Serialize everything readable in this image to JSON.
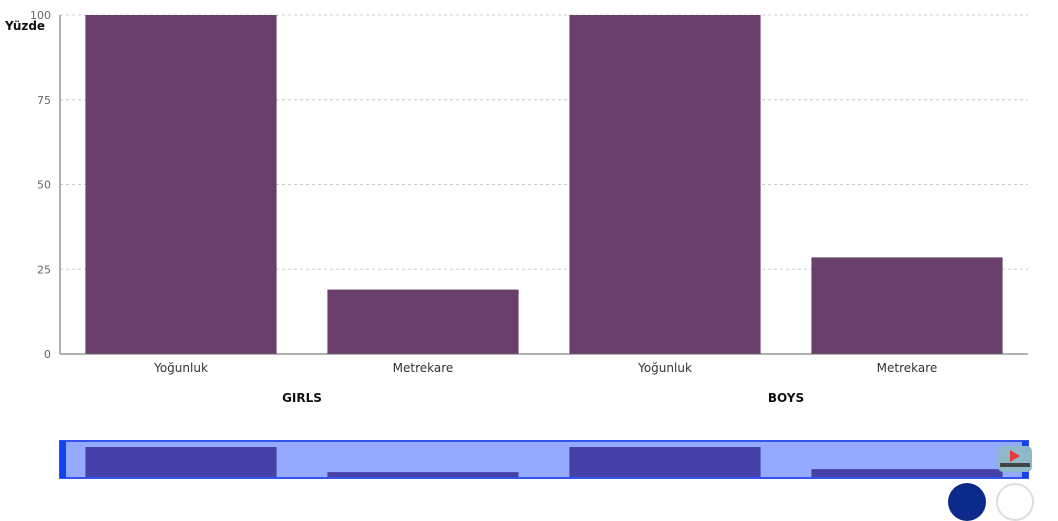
{
  "chart_data": {
    "type": "bar",
    "ylabel": "Yüzde",
    "ylim": [
      0,
      100
    ],
    "yticks": [
      0,
      25,
      50,
      75,
      100
    ],
    "grid": true,
    "groups": [
      {
        "name": "GIRLS",
        "categories": [
          "Yoğunluk",
          "Metrekare"
        ],
        "values": [
          100,
          19
        ]
      },
      {
        "name": "BOYS",
        "categories": [
          "Yoğunluk",
          "Metrekare"
        ],
        "values": [
          100,
          28.5
        ]
      }
    ],
    "colors": {
      "bar": "#6a3f6c",
      "grid": "#cccccc",
      "axis": "#666666",
      "navigator_bg": "#93aaff",
      "navigator_bar": "#4541a8",
      "navigator_border": "#3355ee",
      "navigator_handle": "#1144ee"
    },
    "navigator": true
  }
}
